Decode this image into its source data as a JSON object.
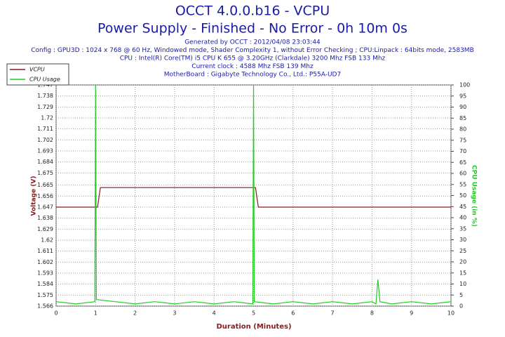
{
  "chart_data": {
    "type": "line",
    "title": "OCCT 4.0.0.b16 - VCPU",
    "subtitle": "Power Supply - Finished - No Error - 0h 10m 0s",
    "info": [
      "Generated by OCCT : 2012/04/08 23:03:44",
      "Config : GPU3D : 1024 x 768 @ 60 Hz, Windowed mode, Shader Complexity 1, without Error Checking ; CPU:Linpack : 64bits mode, 2583MB",
      "CPU : Intel(R) Core(TM) i5 CPU K 655 @ 3.20GHz (Clarkdale) 3200 Mhz FSB 133 Mhz",
      "Current clock : 4588 Mhz FSB 139 Mhz",
      "MotherBoard : Gigabyte Technology Co., Ltd.: P55A-UD7"
    ],
    "x_label": "Duration (Minutes)",
    "y_label": "Voltage (V)",
    "y2_label": "CPU Usage (in %)",
    "xlim": [
      0,
      10
    ],
    "xticks": [
      0,
      1,
      2,
      3,
      4,
      5,
      6,
      7,
      8,
      9,
      10
    ],
    "ylim": [
      1.566,
      1.747
    ],
    "yticks": [
      1.566,
      1.575,
      1.584,
      1.593,
      1.602,
      1.611,
      1.62,
      1.629,
      1.638,
      1.647,
      1.656,
      1.665,
      1.675,
      1.684,
      1.693,
      1.702,
      1.711,
      1.72,
      1.729,
      1.738,
      1.747
    ],
    "y2lim": [
      0,
      100
    ],
    "y2ticks": [
      0,
      5,
      10,
      15,
      20,
      25,
      30,
      35,
      40,
      45,
      50,
      55,
      60,
      65,
      70,
      75,
      80,
      85,
      90,
      95,
      100
    ],
    "grid": true,
    "legend": "top-left",
    "series": [
      {
        "name": "VCPU",
        "color": "#8b1a1a",
        "x": [
          0,
          1.05,
          1.12,
          5.05,
          5.12,
          10
        ],
        "values": [
          1.647,
          1.647,
          1.663,
          1.663,
          1.647,
          1.647
        ]
      },
      {
        "name": "CPU Usage",
        "color": "#22cc22",
        "axis": "y2",
        "x": [
          0,
          0.5,
          0.98,
          1.0,
          1.02,
          1.5,
          2,
          2.5,
          3,
          3.5,
          4,
          4.5,
          4.98,
          5.0,
          5.02,
          5.5,
          6,
          6.5,
          7,
          7.5,
          8,
          8.1,
          8.15,
          8.2,
          8.5,
          9,
          9.5,
          10
        ],
        "values": [
          2,
          1,
          2,
          100,
          3,
          2,
          1,
          2,
          1,
          2,
          1,
          2,
          1,
          100,
          2,
          1,
          2,
          1,
          2,
          1,
          2,
          1,
          12,
          2,
          1,
          2,
          1,
          2
        ]
      }
    ]
  }
}
